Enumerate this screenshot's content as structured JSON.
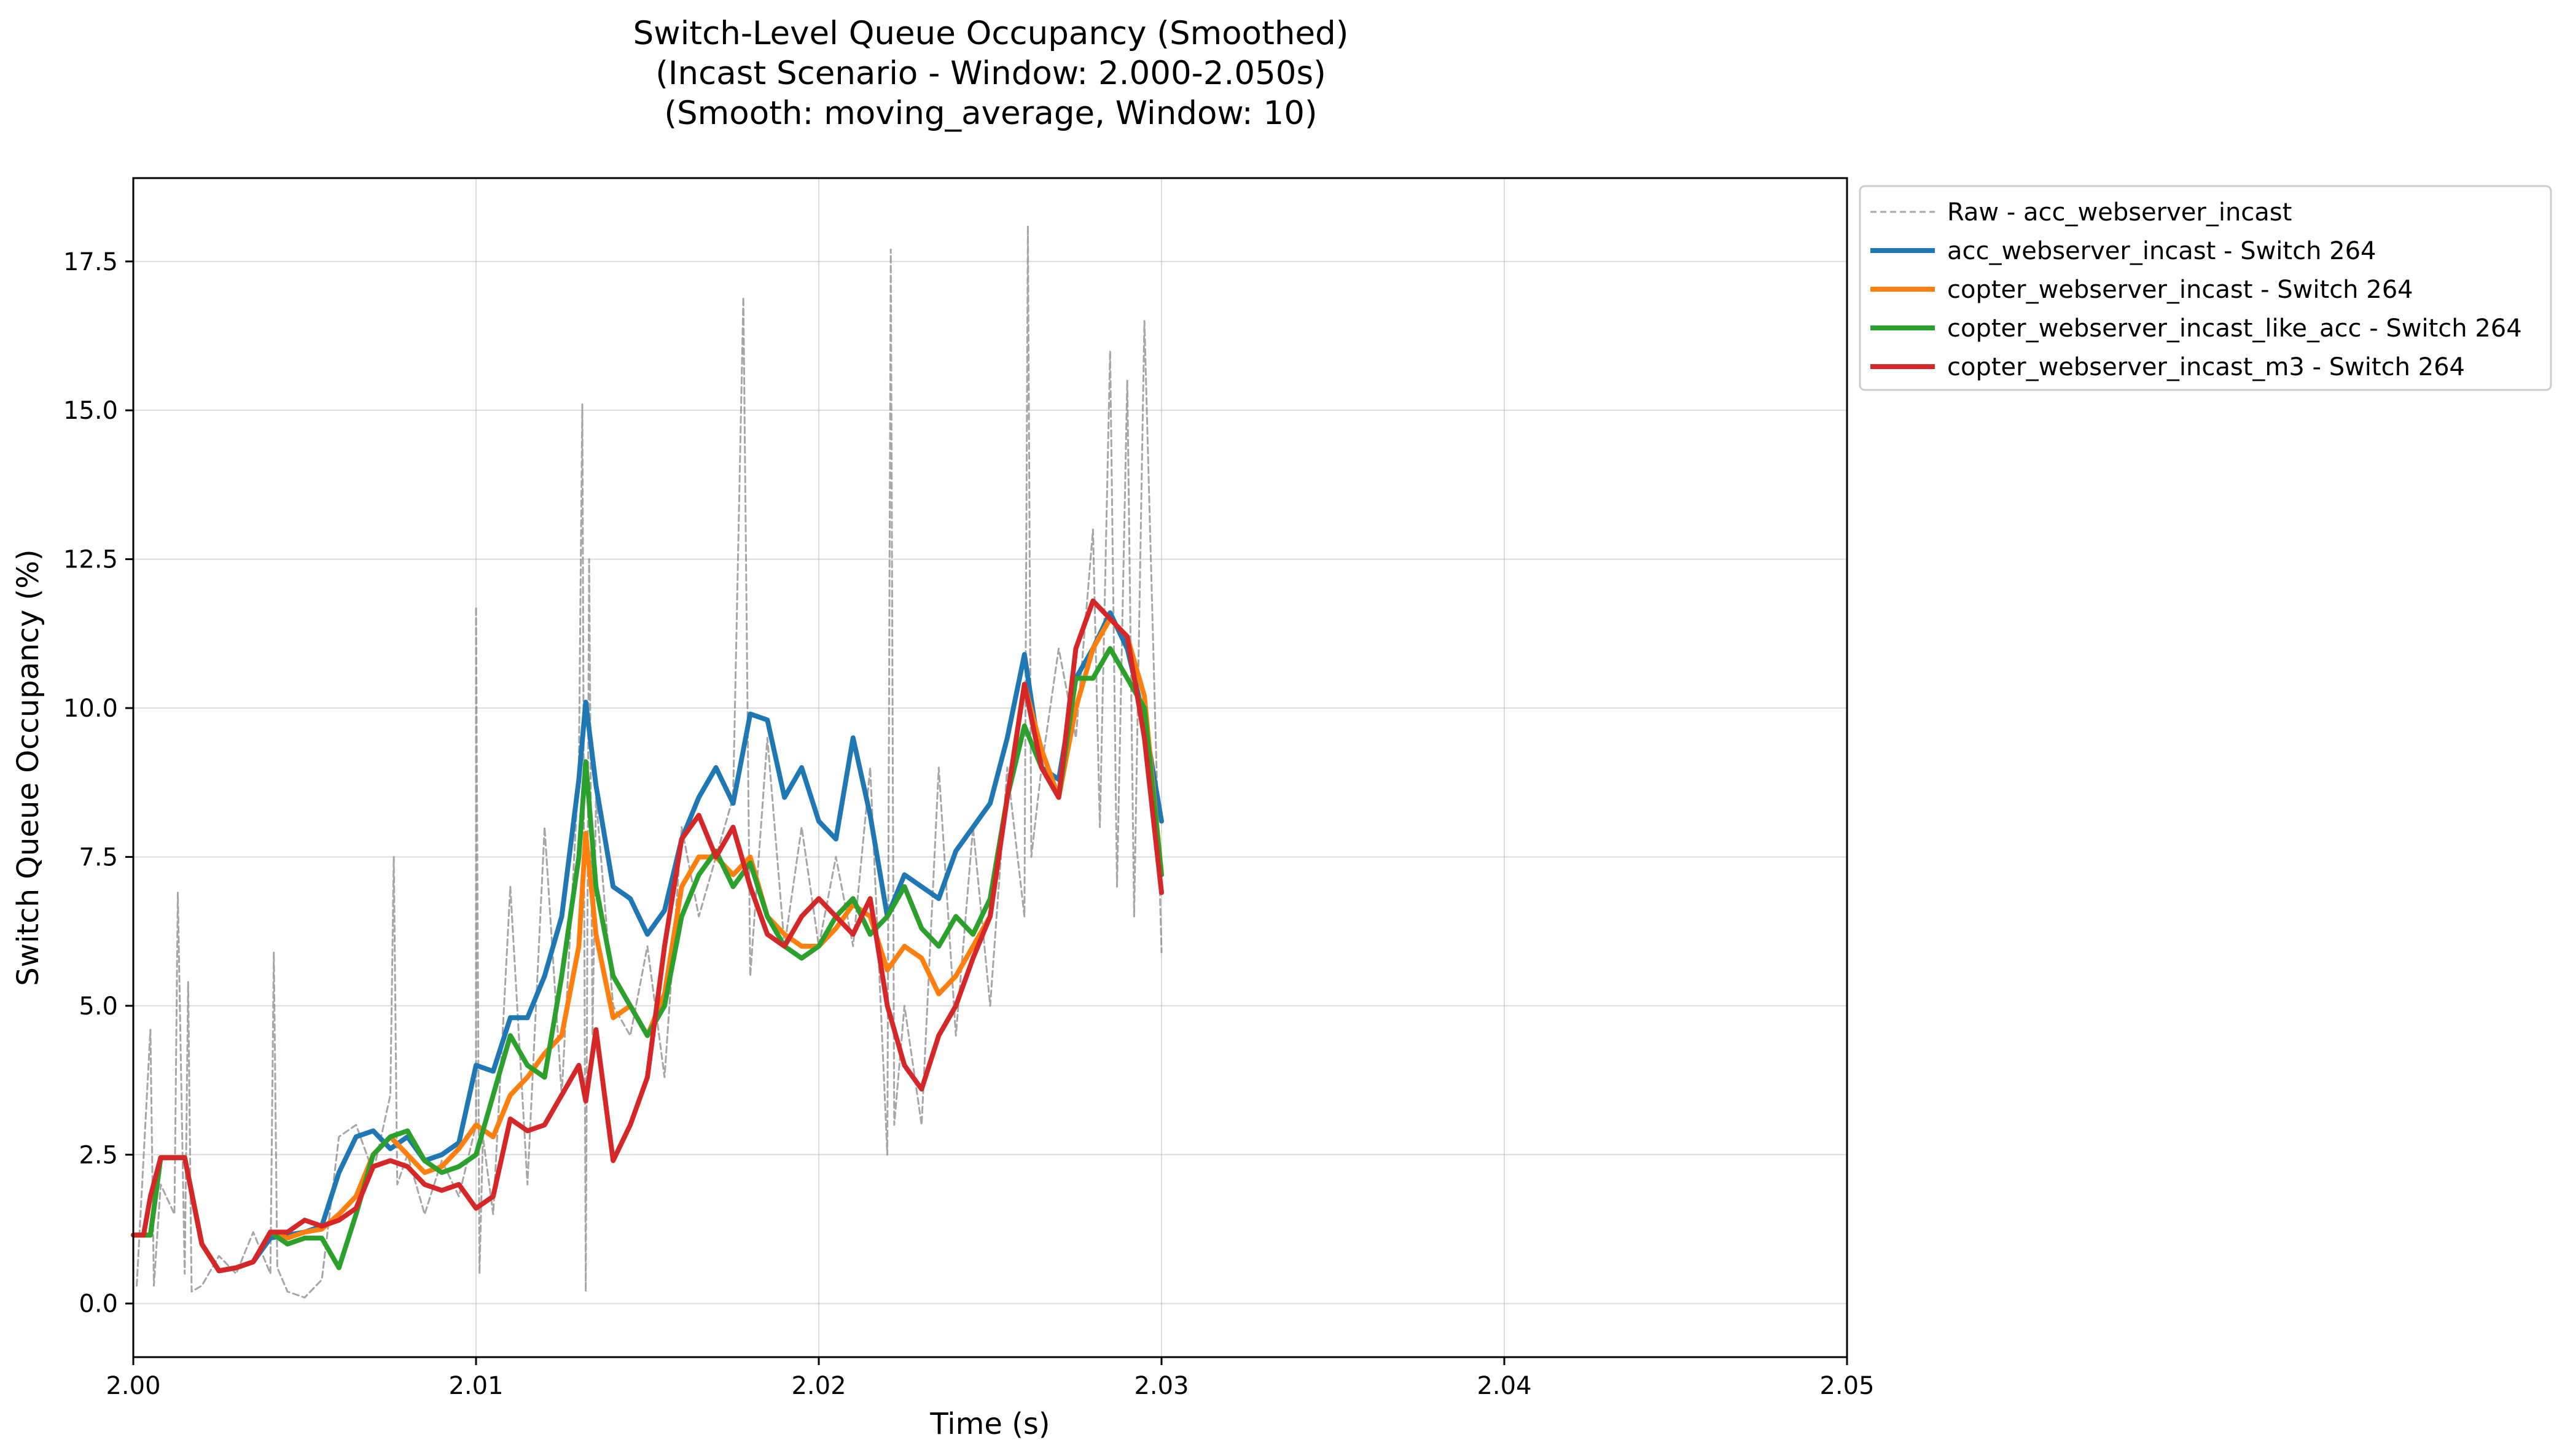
{
  "chart_data": {
    "type": "line",
    "title": [
      "Switch-Level Queue Occupancy (Smoothed)",
      "(Incast Scenario - Window: 2.000-2.050s)",
      "(Smooth: moving_average, Window: 10)"
    ],
    "xlabel": "Time (s)",
    "ylabel": "Switch Queue Occupancy (%)",
    "xlim": [
      2.0,
      2.05
    ],
    "ylim": [
      -0.9,
      18.9
    ],
    "xticks": [
      2.0,
      2.01,
      2.02,
      2.03,
      2.04,
      2.05
    ],
    "xtick_labels": [
      "2.00",
      "2.01",
      "2.02",
      "2.03",
      "2.04",
      "2.05"
    ],
    "yticks": [
      0.0,
      2.5,
      5.0,
      7.5,
      10.0,
      12.5,
      15.0,
      17.5
    ],
    "ytick_labels": [
      "0.0",
      "2.5",
      "5.0",
      "7.5",
      "10.0",
      "12.5",
      "15.0",
      "17.5"
    ],
    "grid": true,
    "legend_position": "outside-top-right",
    "series": [
      {
        "name": "Raw - acc_webserver_incast",
        "color": "#808080",
        "style": "dashed",
        "x": [
          2.0001,
          2.0005,
          2.0006,
          2.0008,
          2.0012,
          2.0013,
          2.0015,
          2.0016,
          2.0017,
          2.002,
          2.0025,
          2.003,
          2.0035,
          2.004,
          2.0041,
          2.0042,
          2.0045,
          2.005,
          2.0055,
          2.006,
          2.0065,
          2.007,
          2.0075,
          2.0076,
          2.0077,
          2.008,
          2.0085,
          2.009,
          2.0095,
          2.01,
          2.01,
          2.0101,
          2.0102,
          2.0105,
          2.011,
          2.0115,
          2.012,
          2.0125,
          2.013,
          2.0131,
          2.0132,
          2.0133,
          2.0134,
          2.0135,
          2.014,
          2.0145,
          2.015,
          2.0155,
          2.016,
          2.0165,
          2.017,
          2.0175,
          2.0178,
          2.018,
          2.0185,
          2.019,
          2.0195,
          2.02,
          2.0205,
          2.021,
          2.0215,
          2.022,
          2.0221,
          2.0222,
          2.0225,
          2.023,
          2.0235,
          2.024,
          2.0245,
          2.025,
          2.0255,
          2.026,
          2.0261,
          2.0262,
          2.0265,
          2.027,
          2.0275,
          2.028,
          2.0282,
          2.0285,
          2.0287,
          2.029,
          2.0292,
          2.0295,
          2.03
        ],
        "y": [
          0.3,
          4.6,
          0.3,
          2.0,
          1.5,
          6.9,
          0.5,
          5.4,
          0.2,
          0.3,
          0.8,
          0.5,
          1.2,
          0.5,
          5.9,
          0.6,
          0.2,
          0.1,
          0.4,
          2.8,
          3.0,
          2.2,
          3.5,
          7.5,
          2.0,
          2.5,
          1.5,
          2.4,
          1.8,
          3.0,
          11.7,
          0.5,
          2.8,
          1.5,
          7.0,
          2.0,
          8.0,
          3.5,
          9.0,
          15.1,
          0.2,
          12.5,
          4.5,
          8.5,
          5.0,
          4.5,
          6.0,
          3.8,
          8.0,
          6.5,
          7.5,
          8.5,
          16.9,
          5.5,
          9.5,
          6.0,
          8.0,
          6.0,
          7.5,
          6.0,
          9.0,
          2.5,
          17.7,
          3.0,
          5.0,
          3.0,
          9.0,
          4.5,
          8.0,
          5.0,
          9.0,
          6.5,
          18.1,
          7.5,
          9.0,
          11.0,
          9.5,
          13.0,
          8.0,
          16.0,
          7.0,
          15.5,
          6.5,
          16.5,
          5.9
        ]
      },
      {
        "name": "acc_webserver_incast - Switch 264",
        "color": "#1f77b4",
        "style": "solid",
        "x": [
          2.0,
          2.0005,
          2.0008,
          2.001,
          2.0015,
          2.002,
          2.0025,
          2.003,
          2.0035,
          2.004,
          2.0045,
          2.005,
          2.0055,
          2.006,
          2.0065,
          2.007,
          2.0075,
          2.008,
          2.0085,
          2.009,
          2.0095,
          2.01,
          2.0105,
          2.011,
          2.0115,
          2.012,
          2.0125,
          2.013,
          2.0132,
          2.0135,
          2.014,
          2.0145,
          2.015,
          2.0155,
          2.016,
          2.0165,
          2.017,
          2.0175,
          2.018,
          2.0185,
          2.019,
          2.0195,
          2.02,
          2.0205,
          2.021,
          2.0215,
          2.022,
          2.0225,
          2.023,
          2.0235,
          2.024,
          2.0245,
          2.025,
          2.0255,
          2.026,
          2.0265,
          2.027,
          2.0275,
          2.028,
          2.0285,
          2.029,
          2.0295,
          2.03
        ],
        "y": [
          1.15,
          1.15,
          2.45,
          2.45,
          2.45,
          1.0,
          0.55,
          0.6,
          0.7,
          1.1,
          1.15,
          1.2,
          1.3,
          2.2,
          2.8,
          2.9,
          2.6,
          2.8,
          2.4,
          2.5,
          2.7,
          4.0,
          3.9,
          4.8,
          4.8,
          5.5,
          6.5,
          8.8,
          10.1,
          8.7,
          7.0,
          6.8,
          6.2,
          6.6,
          7.8,
          8.5,
          9.0,
          8.4,
          9.9,
          9.8,
          8.5,
          9.0,
          8.1,
          7.8,
          9.5,
          8.2,
          6.5,
          7.2,
          7.0,
          6.8,
          7.6,
          8.0,
          8.4,
          9.5,
          10.9,
          9.0,
          8.8,
          10.5,
          11.0,
          11.6,
          11.0,
          9.8,
          8.1
        ]
      },
      {
        "name": "copter_webserver_incast - Switch 264",
        "color": "#ff7f0e",
        "style": "solid",
        "x": [
          2.0,
          2.0005,
          2.0008,
          2.001,
          2.0015,
          2.002,
          2.0025,
          2.003,
          2.0035,
          2.004,
          2.0045,
          2.005,
          2.0055,
          2.006,
          2.0065,
          2.007,
          2.0075,
          2.008,
          2.0085,
          2.009,
          2.0095,
          2.01,
          2.0105,
          2.011,
          2.0115,
          2.012,
          2.0125,
          2.013,
          2.0132,
          2.0135,
          2.014,
          2.0145,
          2.015,
          2.0155,
          2.016,
          2.0165,
          2.017,
          2.0175,
          2.018,
          2.0185,
          2.019,
          2.0195,
          2.02,
          2.0205,
          2.021,
          2.0215,
          2.022,
          2.0225,
          2.023,
          2.0235,
          2.024,
          2.0245,
          2.025,
          2.0255,
          2.026,
          2.0265,
          2.027,
          2.0275,
          2.028,
          2.0285,
          2.029,
          2.0295,
          2.03
        ],
        "y": [
          1.15,
          1.15,
          2.45,
          2.45,
          2.45,
          1.0,
          0.55,
          0.6,
          0.7,
          1.2,
          1.1,
          1.2,
          1.25,
          1.5,
          1.8,
          2.5,
          2.8,
          2.5,
          2.2,
          2.3,
          2.6,
          3.0,
          2.8,
          3.5,
          3.8,
          4.2,
          4.5,
          6.0,
          7.9,
          6.2,
          4.8,
          5.0,
          4.5,
          5.2,
          7.0,
          7.5,
          7.5,
          7.2,
          7.5,
          6.5,
          6.2,
          6.0,
          6.0,
          6.3,
          6.7,
          6.5,
          5.6,
          6.0,
          5.8,
          5.2,
          5.5,
          6.0,
          6.5,
          8.5,
          10.4,
          9.3,
          8.5,
          10.0,
          11.0,
          11.5,
          11.2,
          10.2,
          7.2
        ]
      },
      {
        "name": "copter_webserver_incast_like_acc - Switch 264",
        "color": "#2ca02c",
        "style": "solid",
        "x": [
          2.0,
          2.0005,
          2.0008,
          2.001,
          2.0015,
          2.002,
          2.0025,
          2.003,
          2.0035,
          2.004,
          2.0045,
          2.005,
          2.0055,
          2.006,
          2.0065,
          2.007,
          2.0075,
          2.008,
          2.0085,
          2.009,
          2.0095,
          2.01,
          2.0105,
          2.011,
          2.0115,
          2.012,
          2.0125,
          2.013,
          2.0132,
          2.0135,
          2.014,
          2.0145,
          2.015,
          2.0155,
          2.016,
          2.0165,
          2.017,
          2.0175,
          2.018,
          2.0185,
          2.019,
          2.0195,
          2.02,
          2.0205,
          2.021,
          2.0215,
          2.022,
          2.0225,
          2.023,
          2.0235,
          2.024,
          2.0245,
          2.025,
          2.0255,
          2.026,
          2.0265,
          2.027,
          2.0275,
          2.028,
          2.0285,
          2.029,
          2.0295,
          2.03
        ],
        "y": [
          1.15,
          1.15,
          2.45,
          2.45,
          2.45,
          1.0,
          0.55,
          0.6,
          0.7,
          1.2,
          1.0,
          1.1,
          1.1,
          0.6,
          1.5,
          2.5,
          2.8,
          2.9,
          2.4,
          2.2,
          2.3,
          2.5,
          3.5,
          4.5,
          4.0,
          3.8,
          5.5,
          7.5,
          9.1,
          7.0,
          5.5,
          5.0,
          4.5,
          5.0,
          6.5,
          7.2,
          7.6,
          7.0,
          7.4,
          6.5,
          6.0,
          5.8,
          6.0,
          6.5,
          6.8,
          6.2,
          6.5,
          7.0,
          6.3,
          6.0,
          6.5,
          6.2,
          6.8,
          8.5,
          9.7,
          9.0,
          8.5,
          10.5,
          10.5,
          11.0,
          10.5,
          10.0,
          7.2
        ]
      },
      {
        "name": "copter_webserver_incast_m3 - Switch 264",
        "color": "#d62728",
        "style": "solid",
        "x": [
          2.0,
          2.0003,
          2.0005,
          2.0008,
          2.001,
          2.0015,
          2.002,
          2.0025,
          2.003,
          2.0035,
          2.004,
          2.0045,
          2.005,
          2.0055,
          2.006,
          2.0065,
          2.007,
          2.0075,
          2.008,
          2.0085,
          2.009,
          2.0095,
          2.01,
          2.0105,
          2.011,
          2.0115,
          2.012,
          2.0125,
          2.013,
          2.0132,
          2.0135,
          2.014,
          2.0145,
          2.015,
          2.0155,
          2.016,
          2.0165,
          2.017,
          2.0175,
          2.018,
          2.0185,
          2.019,
          2.0195,
          2.02,
          2.0205,
          2.021,
          2.0215,
          2.022,
          2.0225,
          2.023,
          2.0235,
          2.024,
          2.0245,
          2.025,
          2.0255,
          2.026,
          2.0265,
          2.027,
          2.0275,
          2.028,
          2.0285,
          2.029,
          2.0295,
          2.03
        ],
        "y": [
          1.15,
          1.15,
          1.8,
          2.45,
          2.45,
          2.45,
          1.0,
          0.55,
          0.6,
          0.7,
          1.2,
          1.2,
          1.4,
          1.3,
          1.4,
          1.6,
          2.3,
          2.4,
          2.3,
          2.0,
          1.9,
          2.0,
          1.6,
          1.8,
          3.1,
          2.9,
          3.0,
          3.5,
          4.0,
          3.4,
          4.6,
          2.4,
          3.0,
          3.8,
          6.0,
          7.8,
          8.2,
          7.5,
          8.0,
          7.0,
          6.2,
          6.0,
          6.5,
          6.8,
          6.5,
          6.2,
          6.8,
          5.0,
          4.0,
          3.6,
          4.5,
          5.0,
          5.8,
          6.5,
          8.5,
          10.4,
          9.0,
          8.5,
          11.0,
          11.8,
          11.5,
          11.2,
          9.5,
          6.9
        ]
      }
    ]
  }
}
